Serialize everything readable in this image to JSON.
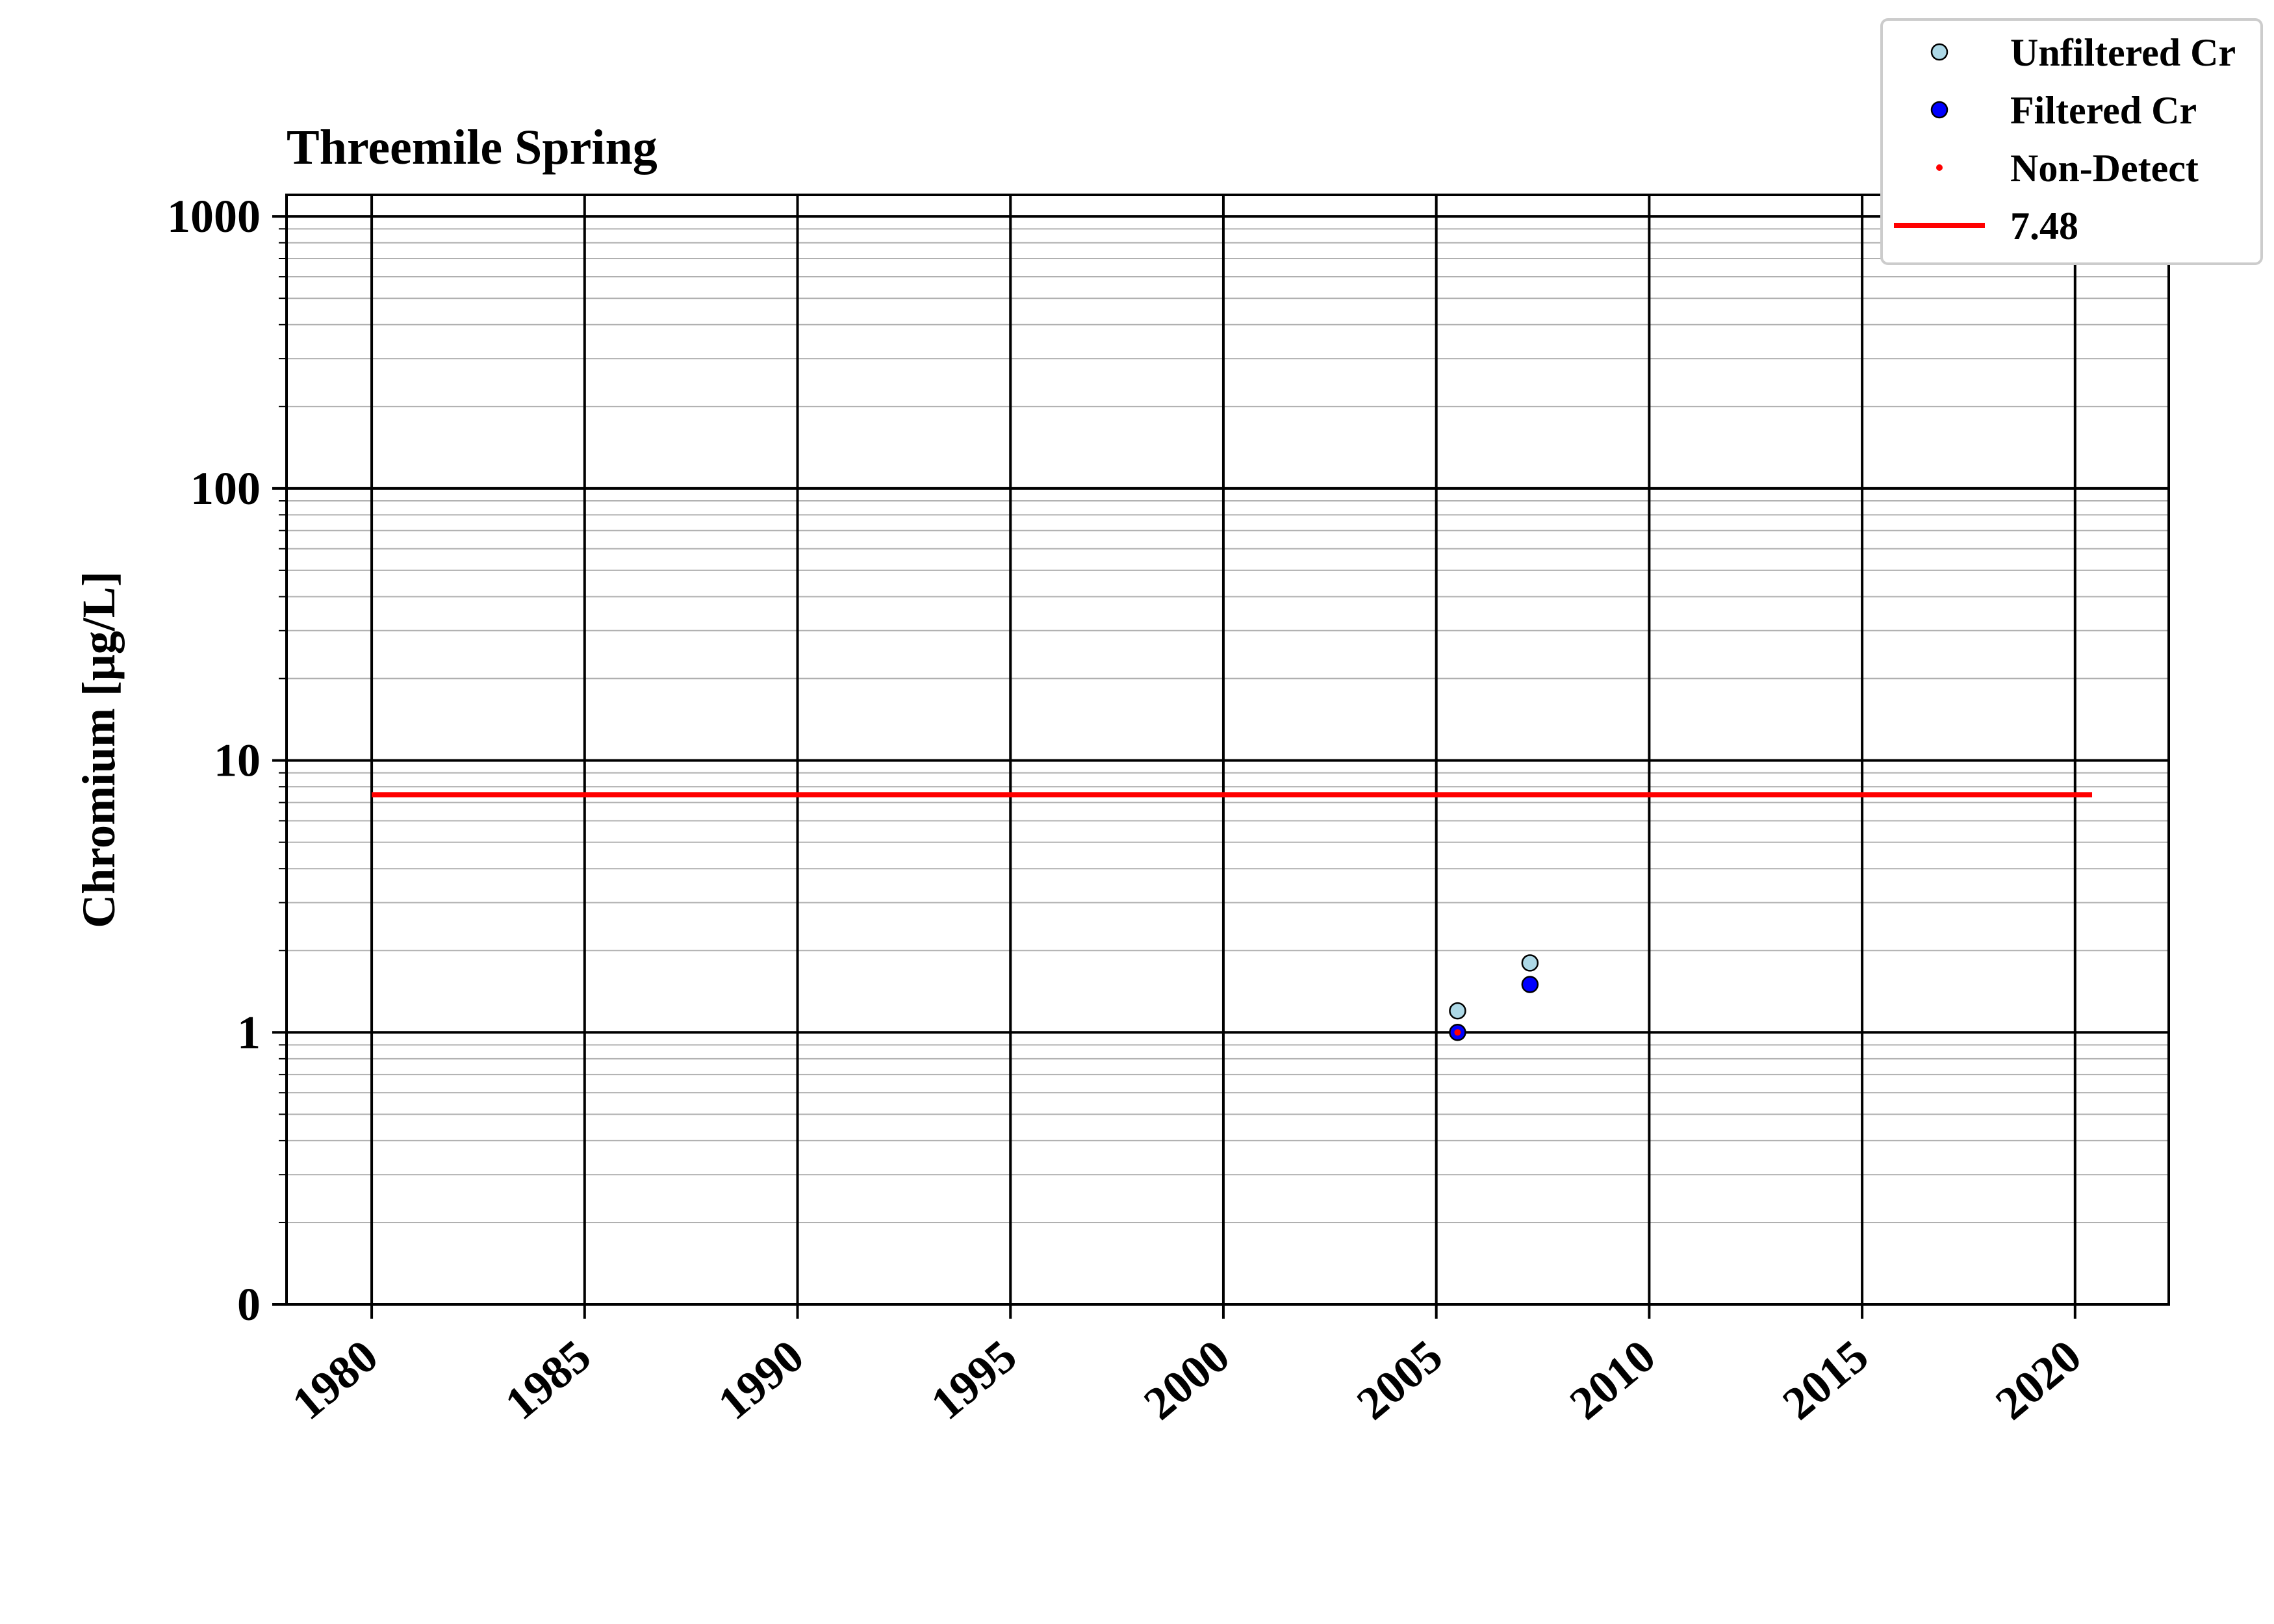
{
  "chart_data": {
    "type": "scatter",
    "title": "Threemile Spring",
    "xlabel": "",
    "ylabel": "Chromium [μg/L]",
    "x_scale": "date",
    "y_scale": "log",
    "xlim": [
      1978.0,
      2022.2
    ],
    "x_ticks": [
      1980,
      1985,
      1990,
      1995,
      2000,
      2005,
      2010,
      2015,
      2020
    ],
    "y_ticks": [
      {
        "value": 0.1,
        "label": "0"
      },
      {
        "value": 1,
        "label": "1"
      },
      {
        "value": 10,
        "label": "10"
      },
      {
        "value": 100,
        "label": "100"
      },
      {
        "value": 1000,
        "label": "1000"
      }
    ],
    "ylim": [
      0.1,
      1200
    ],
    "grid": true,
    "legend_position": "top-right",
    "series": [
      {
        "name": "Unfiltered Cr",
        "kind": "marker",
        "color": "#add8e6",
        "points": [
          {
            "x": 2005.5,
            "y": 1.2
          },
          {
            "x": 2007.2,
            "y": 1.8
          }
        ]
      },
      {
        "name": "Filtered Cr",
        "kind": "marker",
        "color": "#0000ff",
        "points": [
          {
            "x": 2005.5,
            "y": 1.0
          },
          {
            "x": 2007.2,
            "y": 1.5
          }
        ]
      },
      {
        "name": "Non-Detect",
        "kind": "dot",
        "color": "#ff0000",
        "points": [
          {
            "x": 2005.5,
            "y": 1.0
          }
        ]
      },
      {
        "name": "7.48",
        "kind": "hline",
        "color": "#ff0000",
        "y": 7.48,
        "x_range": [
          1980,
          2020.4
        ]
      }
    ]
  }
}
